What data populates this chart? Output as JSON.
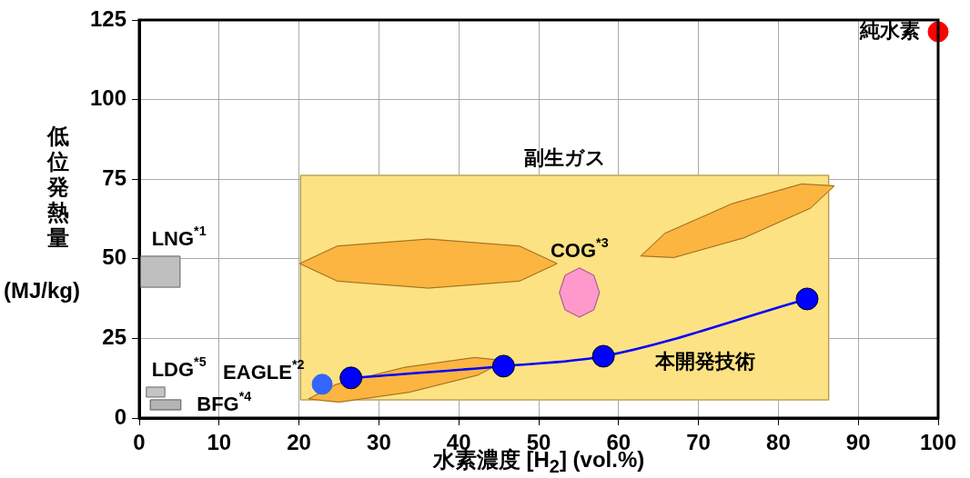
{
  "chart_data": {
    "type": "scatter",
    "xlabel": "水素濃度 [H$_{2}$] (vol.%)",
    "ylabel": "低位発熱量 (MJ/kg)",
    "xlim": [
      0,
      100
    ],
    "xticks": [
      0,
      10,
      20,
      30,
      40,
      50,
      60,
      70,
      80,
      90,
      100
    ],
    "ylim": [
      0,
      125
    ],
    "yticks": [
      0,
      25,
      50,
      75,
      100,
      125
    ],
    "grid": true,
    "legend": false,
    "series": [
      {
        "type": "area",
        "name": "副生ガス",
        "color": "#fde283",
        "x": [
          20.2,
          86.3,
          86.3,
          20.2,
          20.2
        ],
        "values": [
          76.2,
          76.2,
          5.7,
          5.7,
          76.2
        ]
      },
      {
        "type": "area",
        "color": "#fbb540",
        "x": [
          52.3,
          47.6,
          36.2,
          24.8,
          20.1,
          24.8,
          36.2,
          47.6,
          52.3
        ],
        "values": [
          48.5,
          54.0,
          56.2,
          54.0,
          48.5,
          43.0,
          40.8,
          43.0,
          48.5
        ]
      },
      {
        "type": "area",
        "color": "#fbb540",
        "x": [
          87.0,
          84.0,
          75.7,
          66.9,
          62.8,
          65.8,
          74.2,
          82.9,
          87.0
        ],
        "values": [
          72.9,
          65.9,
          56.6,
          50.4,
          50.9,
          58.0,
          67.3,
          73.5,
          72.9
        ]
      },
      {
        "type": "area",
        "color": "#fbb540",
        "x": [
          45.8,
          42.4,
          33.8,
          25.0,
          21.2,
          24.6,
          33.2,
          42.0,
          45.8
        ],
        "values": [
          18.0,
          13.5,
          8.1,
          5.0,
          6.0,
          10.5,
          15.9,
          19.0,
          18.0
        ]
      },
      {
        "type": "area",
        "name": "COG$^{*3}$",
        "color": "#ff99cc",
        "x": [
          57.6,
          56.9,
          55.1,
          53.3,
          52.6,
          53.3,
          55.1,
          56.9,
          57.6
        ],
        "values": [
          39.4,
          44.8,
          47.1,
          44.8,
          39.4,
          34.0,
          31.7,
          34.0,
          39.4
        ]
      },
      {
        "type": "area",
        "name": "LNG$^{*1}$",
        "color": "#bfbfbf",
        "x": [
          0,
          5.1,
          5.1,
          0,
          0
        ],
        "values": [
          50.8,
          50.8,
          41.1,
          41.1,
          50.8
        ]
      },
      {
        "type": "area",
        "name": "LDG$^{*5}$",
        "color": "#c4c4c4",
        "x": [
          0.9,
          3.2,
          3.2,
          0.9,
          0.9
        ],
        "values": [
          9.7,
          9.7,
          6.6,
          6.6,
          9.7
        ]
      },
      {
        "type": "area",
        "name": "BFG$^{*4}$",
        "color": "#b4b4b4",
        "x": [
          1.4,
          5.2,
          5.2,
          1.4,
          1.4
        ],
        "values": [
          5.7,
          5.7,
          2.6,
          2.6,
          5.7
        ]
      },
      {
        "type": "line",
        "name": "本開発技術",
        "color": "#0000ff",
        "marker": "circle",
        "x": [
          26.5,
          45.6,
          58.1,
          83.6
        ],
        "values": [
          12.6,
          16.3,
          19.4,
          37.4
        ]
      },
      {
        "name": "EAGLE$^{*2}$",
        "color": "#3366ff",
        "marker": "circle",
        "x": [
          22.9
        ],
        "values": [
          10.6
        ]
      },
      {
        "name": "純水素",
        "color": "#ff0000",
        "marker": "circle",
        "x": [
          100
        ],
        "values": [
          121.3
        ]
      }
    ]
  }
}
